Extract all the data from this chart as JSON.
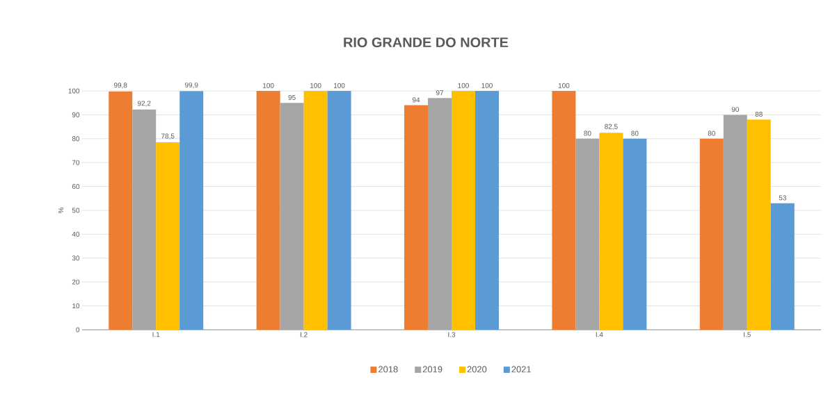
{
  "chart_data": {
    "type": "bar",
    "title": "RIO GRANDE DO NORTE",
    "ylabel": "%",
    "categories": [
      "I.1",
      "I.2",
      "I.3",
      "I.4",
      "I.5"
    ],
    "series": [
      {
        "name": "2018",
        "color": "#ed7d31",
        "values": [
          99.8,
          100,
          94,
          100,
          80
        ],
        "value_labels": [
          "99,8",
          "100",
          "94",
          "100",
          "80"
        ]
      },
      {
        "name": "2019",
        "color": "#a5a5a5",
        "values": [
          92.2,
          95,
          97,
          80,
          90
        ],
        "value_labels": [
          "92,2",
          "95",
          "97",
          "80",
          "90"
        ]
      },
      {
        "name": "2020",
        "color": "#ffc000",
        "values": [
          78.5,
          100,
          100,
          82.5,
          88
        ],
        "value_labels": [
          "78,5",
          "100",
          "100",
          "82,5",
          "88"
        ]
      },
      {
        "name": "2021",
        "color": "#5b9bd5",
        "values": [
          99.9,
          100,
          100,
          80,
          53
        ],
        "value_labels": [
          "99,9",
          "100",
          "100",
          "80",
          "53"
        ]
      }
    ],
    "ylim": [
      0,
      100
    ],
    "yticks": [
      0,
      10,
      20,
      30,
      40,
      50,
      60,
      70,
      80,
      90,
      100
    ],
    "grid": "y",
    "legend": "bottom"
  }
}
